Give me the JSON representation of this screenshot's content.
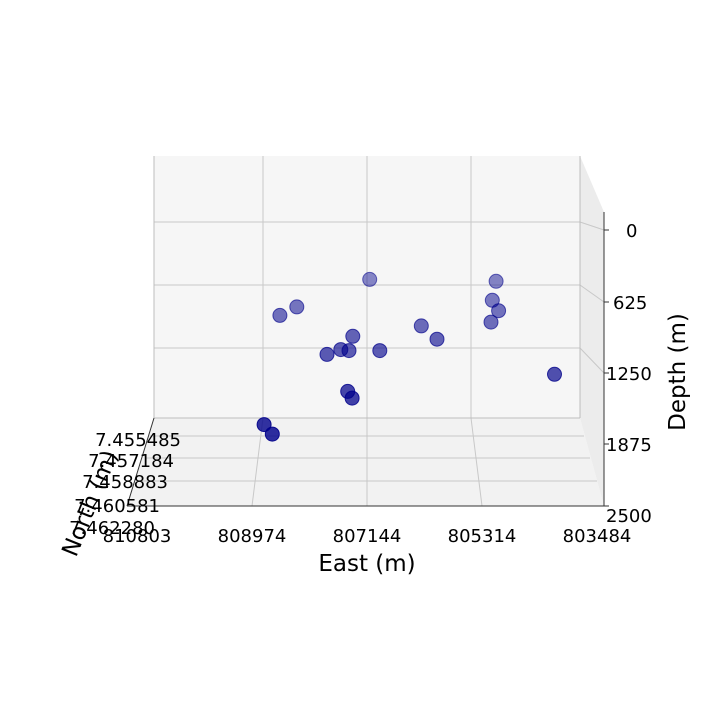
{
  "chart_data": {
    "type": "scatter3d",
    "xlabel": "East (m)",
    "ylabel": "North (m)",
    "zlabel": "Depth (m)",
    "x_ticks": [
      "810803",
      "808974",
      "807144",
      "805314",
      "803484"
    ],
    "y_ticks": [
      "7.455485",
      "7.457184",
      "7.458883",
      "7.460581",
      "7.462280"
    ],
    "z_ticks": [
      "0",
      "625",
      "1250",
      "1875",
      "2500"
    ],
    "xlim": [
      810803,
      803484
    ],
    "zlim": [
      0,
      2500
    ],
    "grid": true,
    "color": "#00008b",
    "points": [
      {
        "east": 807100,
        "depth": 520
      },
      {
        "east": 805090,
        "depth": 540
      },
      {
        "east": 805150,
        "depth": 740
      },
      {
        "east": 805050,
        "depth": 850
      },
      {
        "east": 805170,
        "depth": 970
      },
      {
        "east": 808260,
        "depth": 810
      },
      {
        "east": 808530,
        "depth": 900
      },
      {
        "east": 806280,
        "depth": 1010
      },
      {
        "east": 807370,
        "depth": 1120
      },
      {
        "east": 806030,
        "depth": 1150
      },
      {
        "east": 807560,
        "depth": 1260
      },
      {
        "east": 807430,
        "depth": 1270
      },
      {
        "east": 807780,
        "depth": 1310
      },
      {
        "east": 806940,
        "depth": 1270
      },
      {
        "east": 804160,
        "depth": 1520
      },
      {
        "east": 807450,
        "depth": 1700
      },
      {
        "east": 807380,
        "depth": 1770
      },
      {
        "east": 808780,
        "depth": 2050
      },
      {
        "east": 808650,
        "depth": 2150
      }
    ]
  }
}
